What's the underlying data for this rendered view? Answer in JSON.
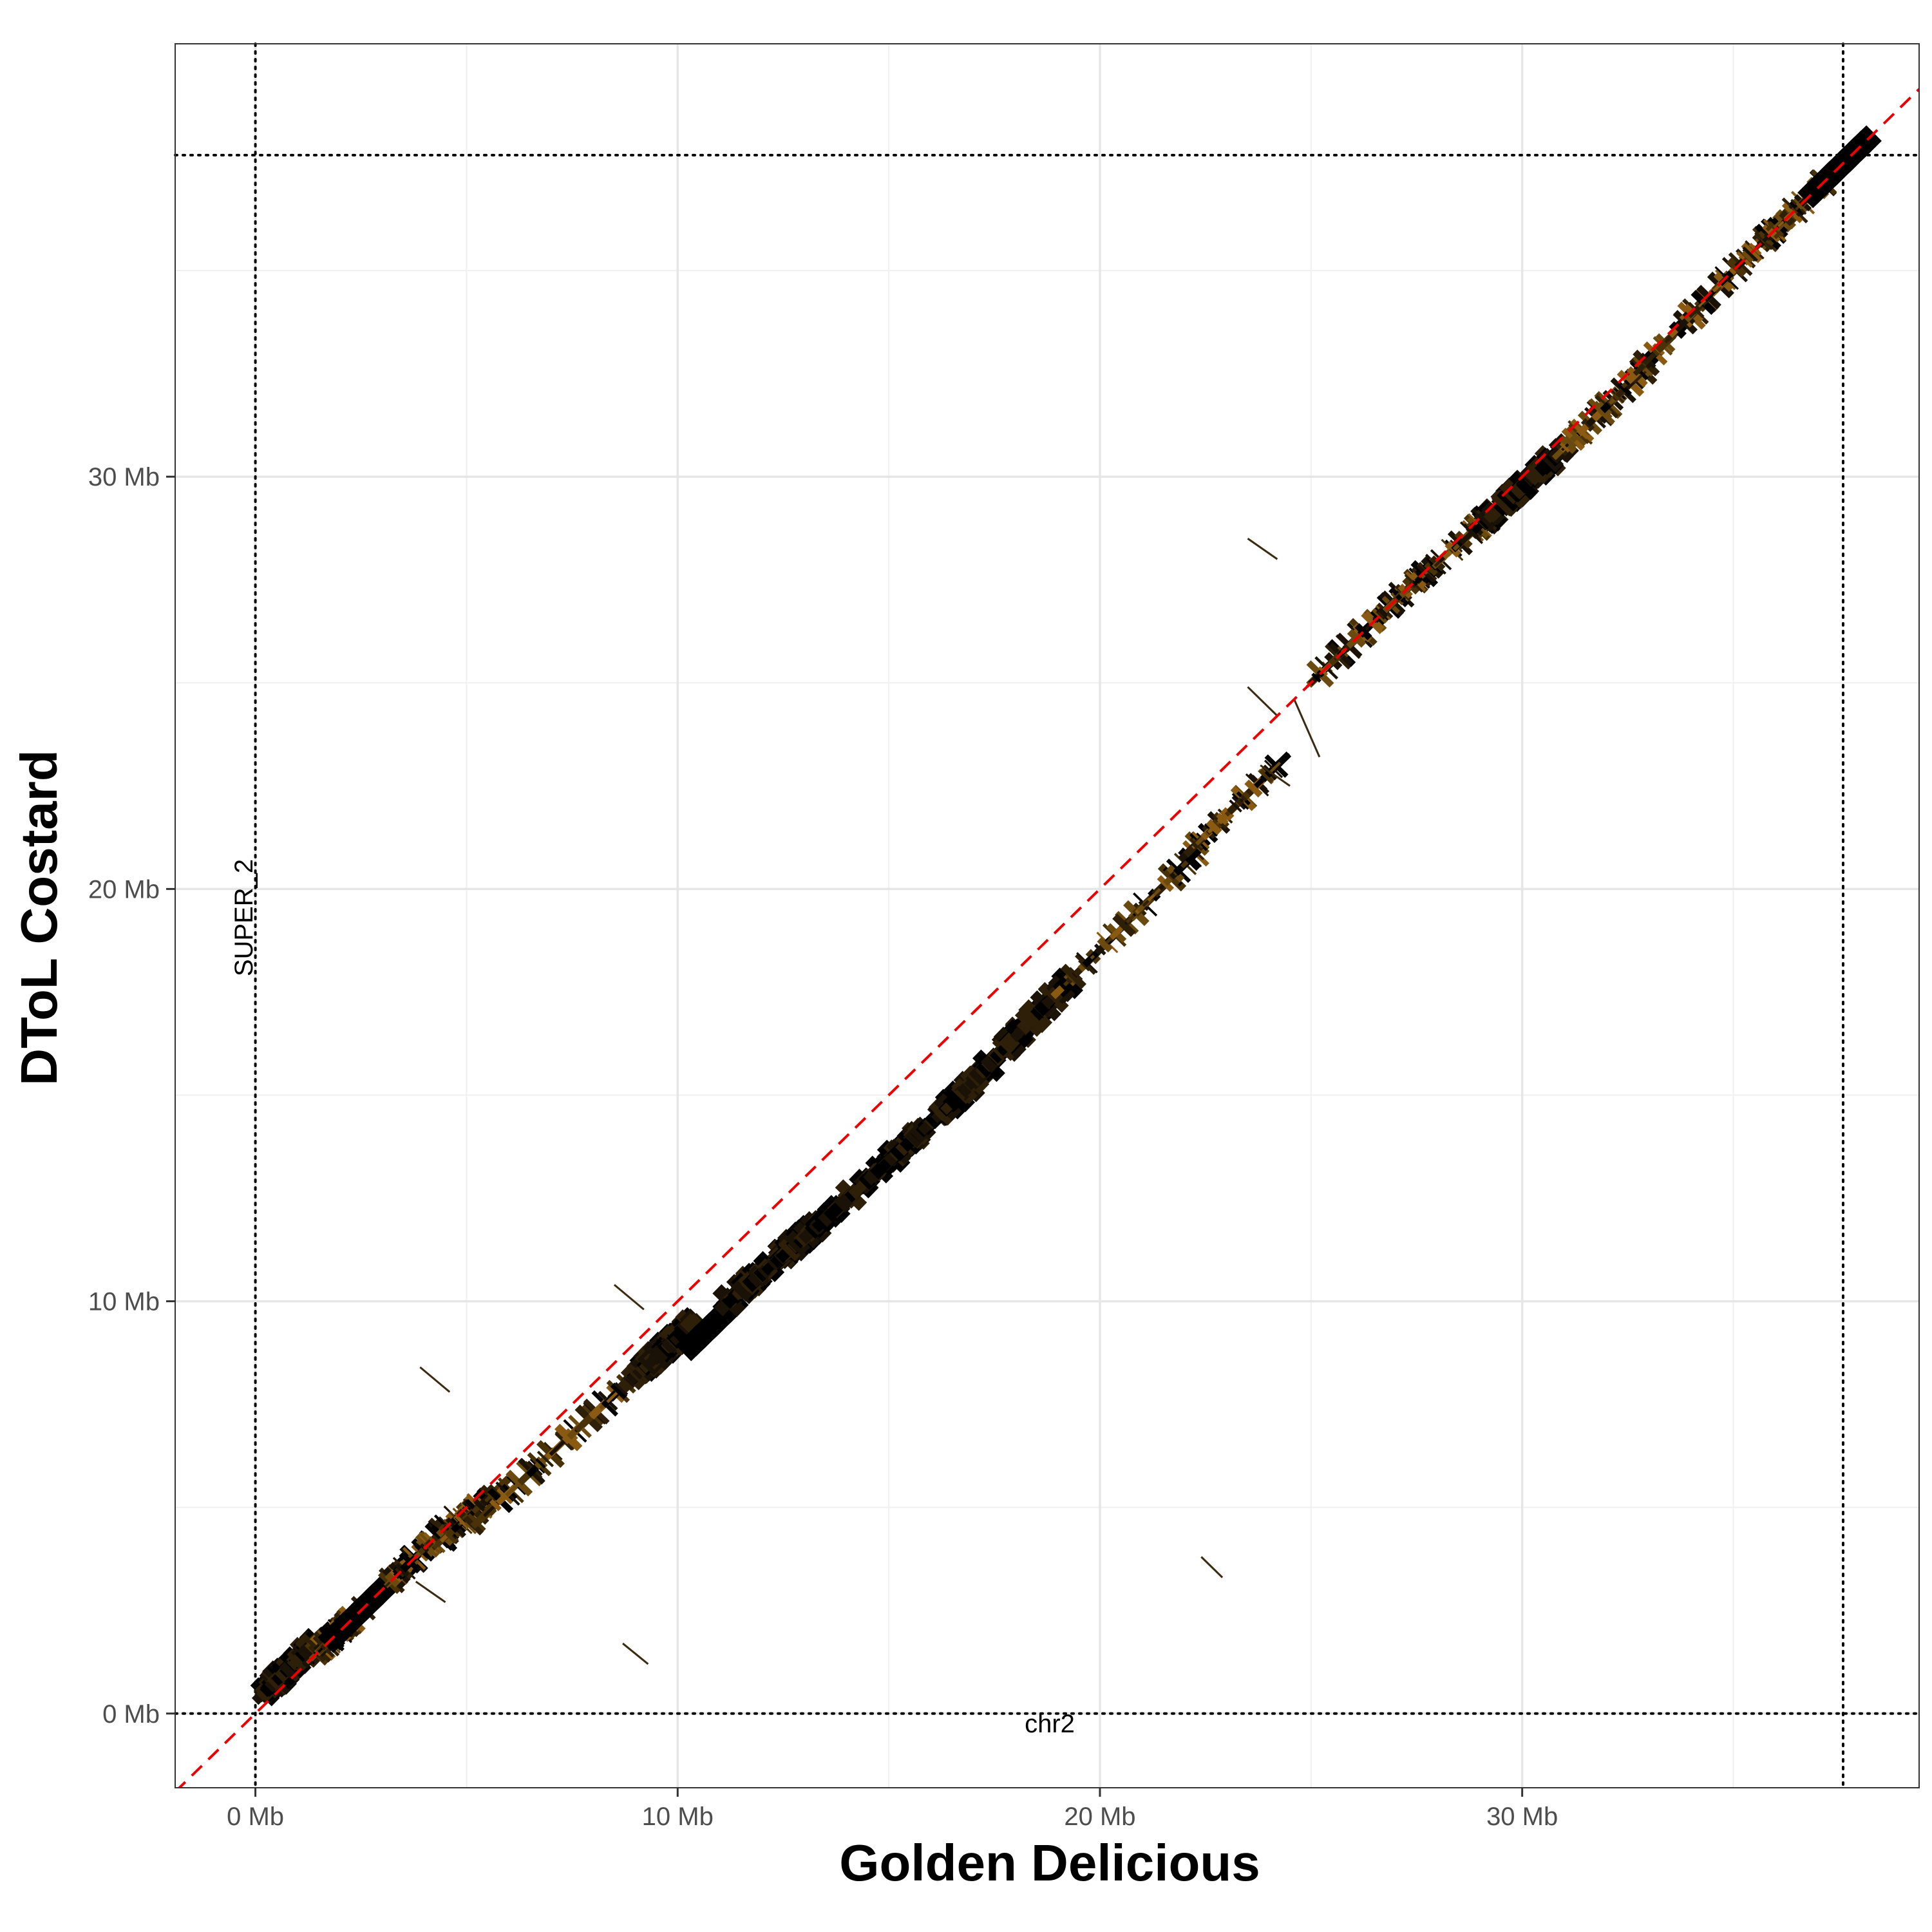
{
  "chart_data": {
    "type": "scatter",
    "subtype": "dotplot-alignment-segments",
    "xlabel": "Golden Delicious",
    "ylabel": "DToL Costard",
    "x_ticks": [
      "0 Mb",
      "10 Mb",
      "20 Mb",
      "30 Mb"
    ],
    "y_ticks": [
      "0 Mb",
      "10 Mb",
      "20 Mb",
      "30 Mb"
    ],
    "x_tick_values": [
      0,
      10,
      20,
      30
    ],
    "y_tick_values": [
      0,
      10,
      20,
      30
    ],
    "xlim": [
      -1.9,
      39.4
    ],
    "ylim": [
      -1.8,
      40.5
    ],
    "x_unit": "Mb",
    "y_unit": "Mb",
    "grid": true,
    "legend": "none",
    "chromosome_labels": {
      "x": "chr2",
      "y": "SUPER_2"
    },
    "chromosome_bounds": {
      "x": [
        0,
        37.6
      ],
      "y": [
        0,
        37.8
      ]
    },
    "reference_line": {
      "type": "y=x",
      "style": "dashed",
      "color": "#ee0000"
    },
    "segment_colors": [
      "#000000",
      "#1a1206",
      "#2e1f08",
      "#4a3208",
      "#6b4a10",
      "#8a5a12"
    ],
    "blocks": [
      {
        "x": [
          0.0,
          1.2
        ],
        "y": [
          0.3,
          1.5
        ],
        "density": "dense"
      },
      {
        "x": [
          1.2,
          2.2
        ],
        "y": [
          1.2,
          2.2
        ],
        "density": "striped"
      },
      {
        "x": [
          1.7,
          3.2
        ],
        "y": [
          1.7,
          3.2
        ],
        "density": "solid"
      },
      {
        "x": [
          3.0,
          4.5
        ],
        "y": [
          3.0,
          4.5
        ],
        "density": "striped"
      },
      {
        "x": [
          4.2,
          5.5
        ],
        "y": [
          4.0,
          5.2
        ],
        "density": "striped"
      },
      {
        "x": [
          5.0,
          8.8
        ],
        "y": [
          4.4,
          8.0
        ],
        "density": "striped"
      },
      {
        "x": [
          8.8,
          10.2
        ],
        "y": [
          8.0,
          9.3
        ],
        "density": "dense"
      },
      {
        "x": [
          10.2,
          11.0
        ],
        "y": [
          8.8,
          9.6
        ],
        "density": "solid"
      },
      {
        "x": [
          11.0,
          13.3
        ],
        "y": [
          9.8,
          11.8
        ],
        "density": "dense"
      },
      {
        "x": [
          13.3,
          16.5
        ],
        "y": [
          11.8,
          14.8
        ],
        "density": "dense"
      },
      {
        "x": [
          16.5,
          19.0
        ],
        "y": [
          14.8,
          17.5
        ],
        "density": "dense"
      },
      {
        "x": [
          19.0,
          22.2
        ],
        "y": [
          17.5,
          20.8
        ],
        "density": "striped"
      },
      {
        "x": [
          22.0,
          24.0
        ],
        "y": [
          20.8,
          22.8
        ],
        "density": "striped"
      },
      {
        "x": [
          25.0,
          27.0
        ],
        "y": [
          25.0,
          27.0
        ],
        "density": "striped"
      },
      {
        "x": [
          27.0,
          29.0
        ],
        "y": [
          27.0,
          28.8
        ],
        "density": "striped"
      },
      {
        "x": [
          29.0,
          30.8
        ],
        "y": [
          28.8,
          30.5
        ],
        "density": "dense"
      },
      {
        "x": [
          30.8,
          32.8
        ],
        "y": [
          30.5,
          32.5
        ],
        "density": "striped"
      },
      {
        "x": [
          32.5,
          35.0
        ],
        "y": [
          32.3,
          35.0
        ],
        "density": "striped"
      },
      {
        "x": [
          35.0,
          36.8
        ],
        "y": [
          35.0,
          36.8
        ],
        "density": "striped"
      },
      {
        "x": [
          36.8,
          37.8
        ],
        "y": [
          36.8,
          37.8
        ],
        "density": "solid"
      }
    ],
    "outlier_segments": [
      {
        "x": [
          3.8,
          4.5
        ],
        "y": [
          3.2,
          2.7
        ]
      },
      {
        "x": [
          8.7,
          9.3
        ],
        "y": [
          1.7,
          1.2
        ]
      },
      {
        "x": [
          8.5,
          9.2
        ],
        "y": [
          10.4,
          9.8
        ]
      },
      {
        "x": [
          3.9,
          4.6
        ],
        "y": [
          8.4,
          7.8
        ]
      },
      {
        "x": [
          23.5,
          24.2
        ],
        "y": [
          28.5,
          28.0
        ]
      },
      {
        "x": [
          22.4,
          22.9
        ],
        "y": [
          3.8,
          3.3
        ]
      },
      {
        "x": [
          23.5,
          24.2
        ],
        "y": [
          24.9,
          24.2
        ]
      },
      {
        "x": [
          24.6,
          25.2
        ],
        "y": [
          24.6,
          23.2
        ]
      },
      {
        "x": [
          23.8,
          24.5
        ],
        "y": [
          23.0,
          22.5
        ]
      }
    ]
  }
}
